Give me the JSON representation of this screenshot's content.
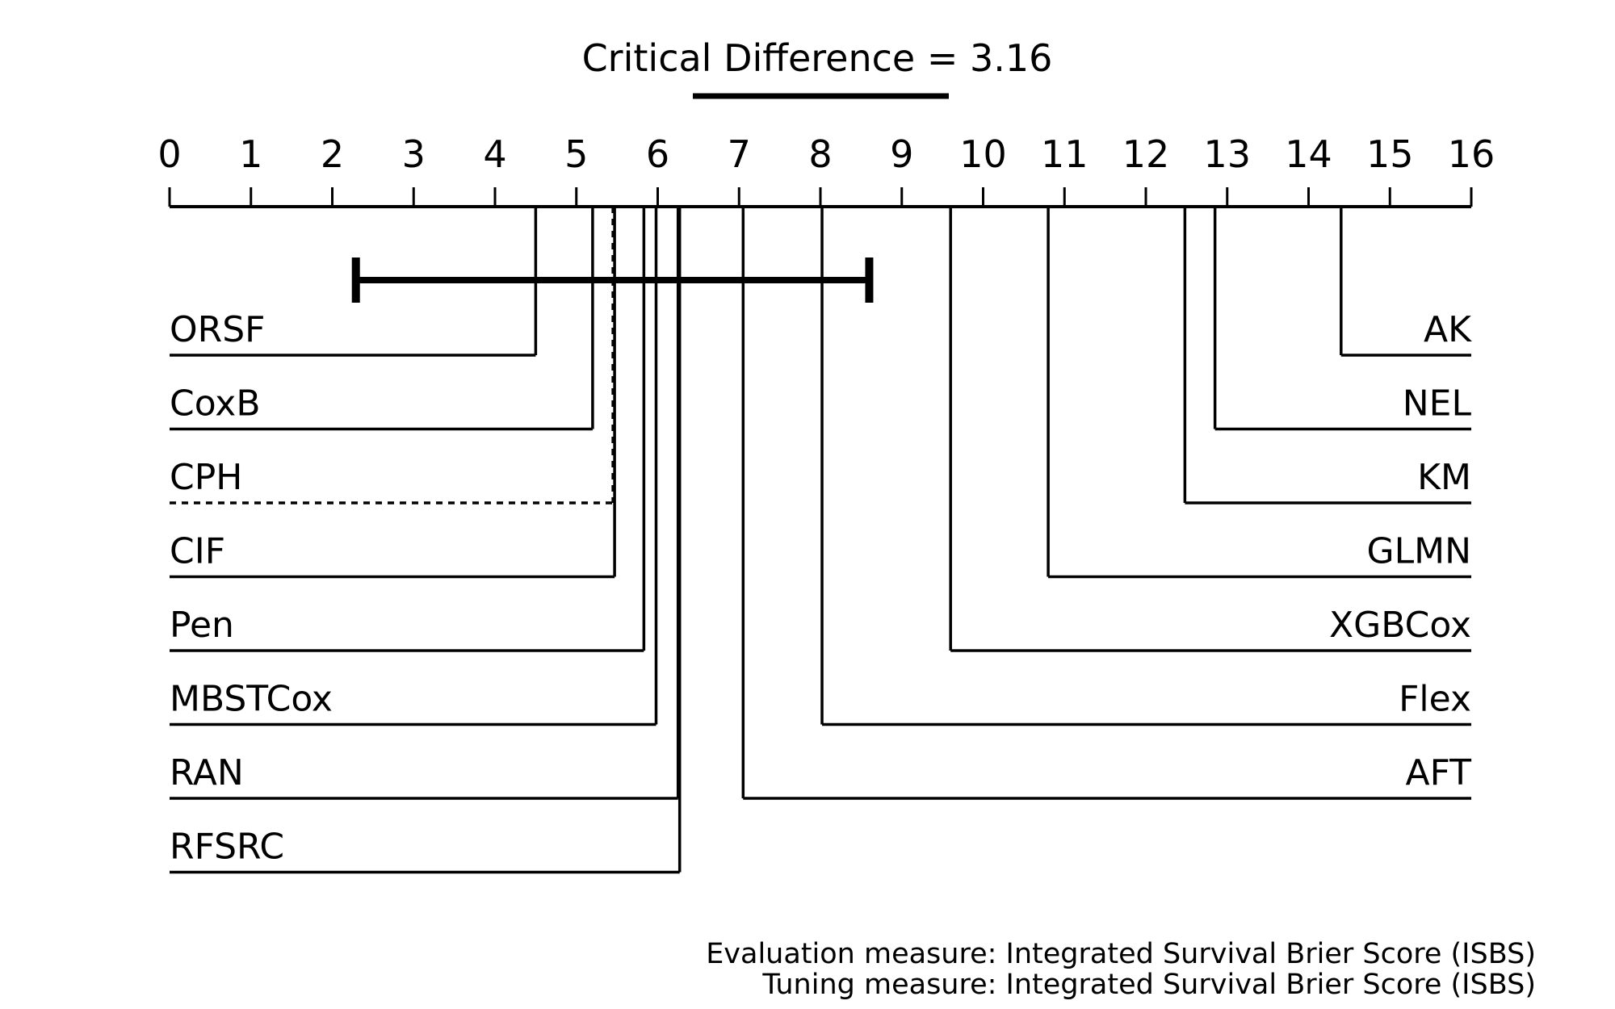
{
  "chart_data": {
    "type": "critical-difference",
    "title": "Critical Difference = 3.16",
    "critical_difference": 3.16,
    "axis": {
      "min": 0,
      "max": 16,
      "tick_labels": [
        "0",
        "1",
        "2",
        "3",
        "4",
        "5",
        "6",
        "7",
        "8",
        "9",
        "10",
        "11",
        "12",
        "13",
        "14",
        "15",
        "16"
      ]
    },
    "cd_interval": [
      2.29,
      8.6
    ],
    "left_methods": [
      {
        "name": "ORSF",
        "rank": 4.5,
        "style": "solid"
      },
      {
        "name": "CoxB",
        "rank": 5.2,
        "style": "solid"
      },
      {
        "name": "CPH",
        "rank": 5.45,
        "style": "dashed"
      },
      {
        "name": "CIF",
        "rank": 5.47,
        "style": "solid"
      },
      {
        "name": "Pen",
        "rank": 5.83,
        "style": "solid"
      },
      {
        "name": "MBSTCox",
        "rank": 5.98,
        "style": "solid"
      },
      {
        "name": "RAN",
        "rank": 6.25,
        "style": "solid"
      },
      {
        "name": "RFSRC",
        "rank": 6.27,
        "style": "solid"
      }
    ],
    "right_methods": [
      {
        "name": "AK",
        "rank": 14.4,
        "style": "solid"
      },
      {
        "name": "NEL",
        "rank": 12.85,
        "style": "solid"
      },
      {
        "name": "KM",
        "rank": 12.48,
        "style": "solid"
      },
      {
        "name": "GLMN",
        "rank": 10.8,
        "style": "solid"
      },
      {
        "name": "XGBCox",
        "rank": 9.6,
        "style": "solid"
      },
      {
        "name": "Flex",
        "rank": 8.02,
        "style": "solid"
      },
      {
        "name": "AFT",
        "rank": 7.05,
        "style": "solid"
      }
    ],
    "footnotes": [
      "Evaluation measure: Integrated Survival Brier Score (ISBS)",
      "Tuning measure: Integrated Survival Brier Score (ISBS)"
    ],
    "colors": {
      "ink": "#000000",
      "background": "#ffffff"
    }
  }
}
